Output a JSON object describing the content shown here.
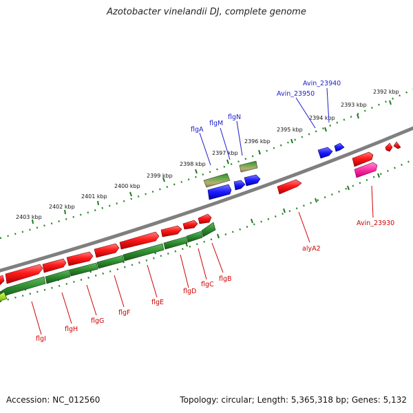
{
  "title": "Azotobacter vinelandii DJ, complete genome",
  "footer": {
    "accession": "Accession: NC_012560",
    "summary": "Topology: circular; Length: 5,365,318 bp; Genes: 5,132"
  },
  "colors": {
    "backbone": "#8a8a8a",
    "tick": "#1f7a1f",
    "forward_gene": "#ff1a1a",
    "reverse_gene": "#2e8b2e",
    "blue_gene": "#1a1aff",
    "pink_gene": "#ff2aa0",
    "olive_gene": "#9a9a50",
    "label_red": "#cc0000",
    "label_blue": "#1a1acc"
  },
  "ticks": [
    "2392 kbp",
    "2393 kbp",
    "2394 kbp",
    "2395 kbp",
    "2396 kbp",
    "2397 kbp",
    "2398 kbp",
    "2399 kbp",
    "2400 kbp",
    "2401 kbp",
    "2402 kbp",
    "2403 kbp"
  ],
  "labels_above": [
    "flgA",
    "flgM",
    "flgN",
    "Avin_23950",
    "Avin_23940"
  ],
  "labels_below": [
    "flgI",
    "flgH",
    "flgG",
    "flgF",
    "flgE",
    "flgD",
    "flgC",
    "flgB",
    "alyA2",
    "Avin_23930"
  ]
}
